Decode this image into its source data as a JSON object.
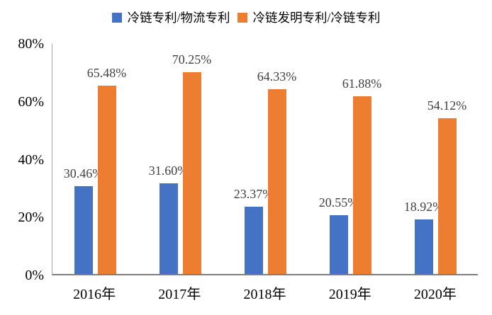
{
  "chart_data": {
    "type": "bar",
    "categories": [
      "2016年",
      "2017年",
      "2018年",
      "2019年",
      "2020年"
    ],
    "series": [
      {
        "name": "冷链专利/物流专利",
        "color": "#4472C4",
        "values": [
          30.46,
          31.6,
          23.37,
          20.55,
          18.92
        ],
        "labels": [
          "30.46%",
          "31.60%",
          "23.37%",
          "20.55%",
          "18.92%"
        ]
      },
      {
        "name": "冷链发明专利/冷链专利",
        "color": "#ED7D31",
        "values": [
          65.48,
          70.25,
          64.33,
          61.88,
          54.12
        ],
        "labels": [
          "65.48%",
          "70.25%",
          "64.33%",
          "61.88%",
          "54.12%"
        ]
      }
    ],
    "title": "",
    "xlabel": "",
    "ylabel": "",
    "ylim": [
      0,
      80
    ],
    "ytick_values": [
      0,
      20,
      40,
      60,
      80
    ],
    "yticks": [
      "0%",
      "20%",
      "40%",
      "60%",
      "80%"
    ],
    "grid": false,
    "legend_position": "top"
  },
  "colors": {
    "axis_line": "#7f7f7f",
    "y_axis_line": "#a6a6a6",
    "data_label_text": "#404040",
    "tick_text": "#000000"
  }
}
